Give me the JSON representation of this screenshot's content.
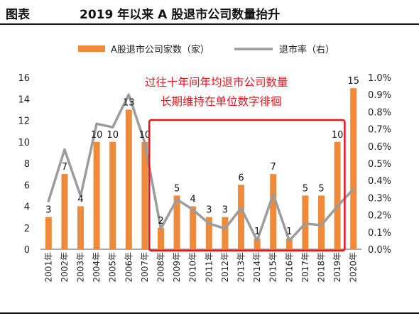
{
  "header": {
    "label": "图表",
    "title": "2019 年以来 A 股退市公司数量抬升"
  },
  "chart_data": {
    "type": "bar",
    "categories": [
      "2001年",
      "2002年",
      "2003年",
      "2004年",
      "2005年",
      "2006年",
      "2007年",
      "2008年",
      "2009年",
      "2010年",
      "2011年",
      "2012年",
      "2013年",
      "2014年",
      "2015年",
      "2016年",
      "2017年",
      "2018年",
      "2019年",
      "2020年"
    ],
    "series": [
      {
        "name": "A股退市公司家数（家）",
        "type": "bar",
        "axis": "left",
        "color": "#ee8a3a",
        "values": [
          3,
          7,
          4,
          10,
          10,
          13,
          10,
          2,
          5,
          4,
          3,
          3,
          6,
          1,
          7,
          1,
          5,
          5,
          10,
          15
        ]
      },
      {
        "name": "退市率（右）",
        "type": "line",
        "axis": "right",
        "color": "#9c9c9c",
        "values": [
          0.28,
          0.58,
          0.31,
          0.73,
          0.71,
          0.9,
          0.62,
          0.12,
          0.29,
          0.23,
          0.15,
          0.12,
          0.24,
          0.05,
          0.32,
          0.05,
          0.15,
          0.14,
          0.25,
          0.35
        ]
      }
    ],
    "data_labels": [
      "3",
      "7",
      "4",
      "10",
      "10",
      "13",
      "10",
      "2",
      "5",
      "4",
      "3",
      "3",
      "6",
      "1",
      "7",
      "1",
      "5",
      "5",
      "10",
      "15"
    ],
    "y_left": {
      "min": 0,
      "max": 16,
      "ticks": [
        "0",
        "2",
        "4",
        "6",
        "8",
        "10",
        "12",
        "14",
        "16"
      ]
    },
    "y_right": {
      "min": 0,
      "max": 1.0,
      "ticks": [
        "0.0%",
        "0.1%",
        "0.2%",
        "0.3%",
        "0.4%",
        "0.5%",
        "0.6%",
        "0.7%",
        "0.8%",
        "0.9%",
        "1.0%"
      ]
    },
    "annotation": {
      "lines": [
        "过往十年间年均退市公司数量",
        "长期维持在单位数字徘徊"
      ],
      "color": "#e8141c",
      "box_from": "2008年",
      "box_to": "2019年"
    },
    "grid": false,
    "legend_position": "top"
  }
}
